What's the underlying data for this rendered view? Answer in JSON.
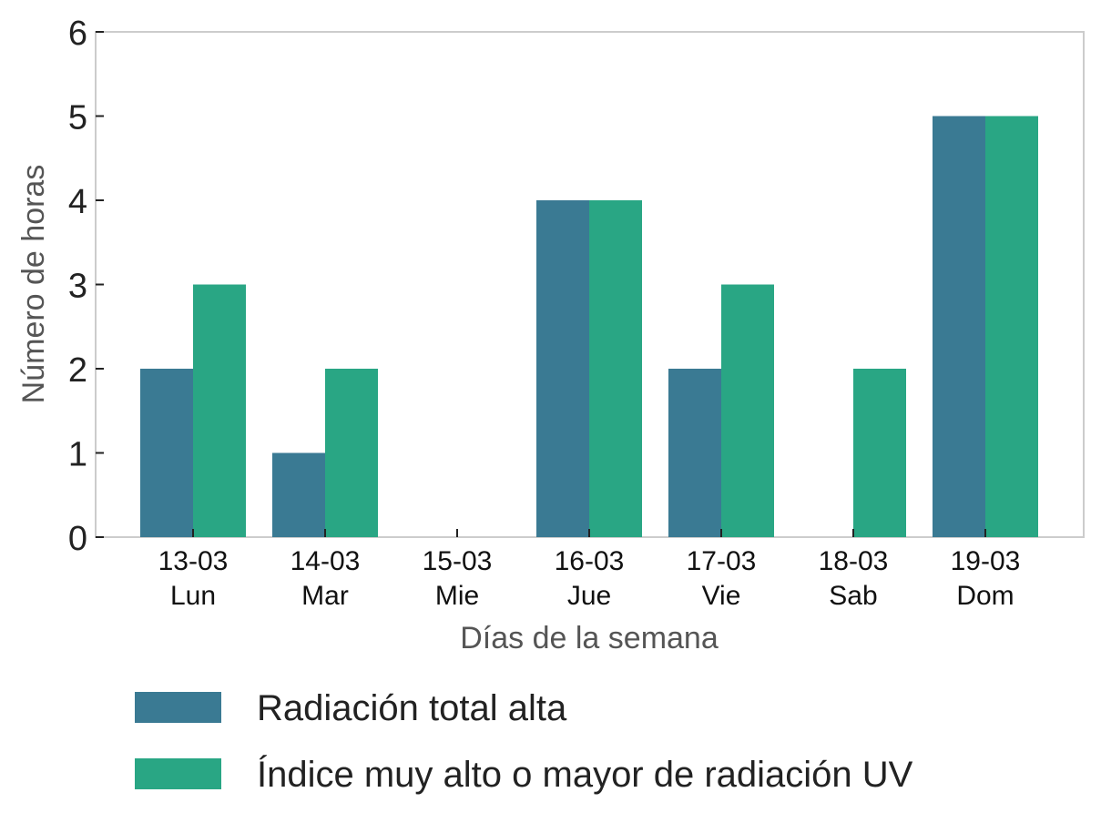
{
  "chart_data": {
    "type": "bar",
    "title": "",
    "xlabel": "Días de la semana",
    "ylabel": "Número de horas",
    "ylim": [
      0,
      6
    ],
    "yticks": [
      "0",
      "1",
      "2",
      "3",
      "4",
      "5",
      "6"
    ],
    "grid": false,
    "legend_position": "bottom",
    "categories": [
      {
        "date": "13-03",
        "day": "Lun"
      },
      {
        "date": "14-03",
        "day": "Mar"
      },
      {
        "date": "15-03",
        "day": "Mie"
      },
      {
        "date": "16-03",
        "day": "Jue"
      },
      {
        "date": "17-03",
        "day": "Vie"
      },
      {
        "date": "18-03",
        "day": "Sab"
      },
      {
        "date": "19-03",
        "day": "Dom"
      }
    ],
    "series": [
      {
        "name": "Radiación total alta",
        "color": "#3a7a93",
        "values": [
          2,
          1,
          0,
          4,
          2,
          0,
          5
        ]
      },
      {
        "name": "Índice muy alto o mayor de radiación UV",
        "color": "#29a684",
        "values": [
          3,
          2,
          0,
          4,
          3,
          2,
          5
        ]
      }
    ]
  }
}
